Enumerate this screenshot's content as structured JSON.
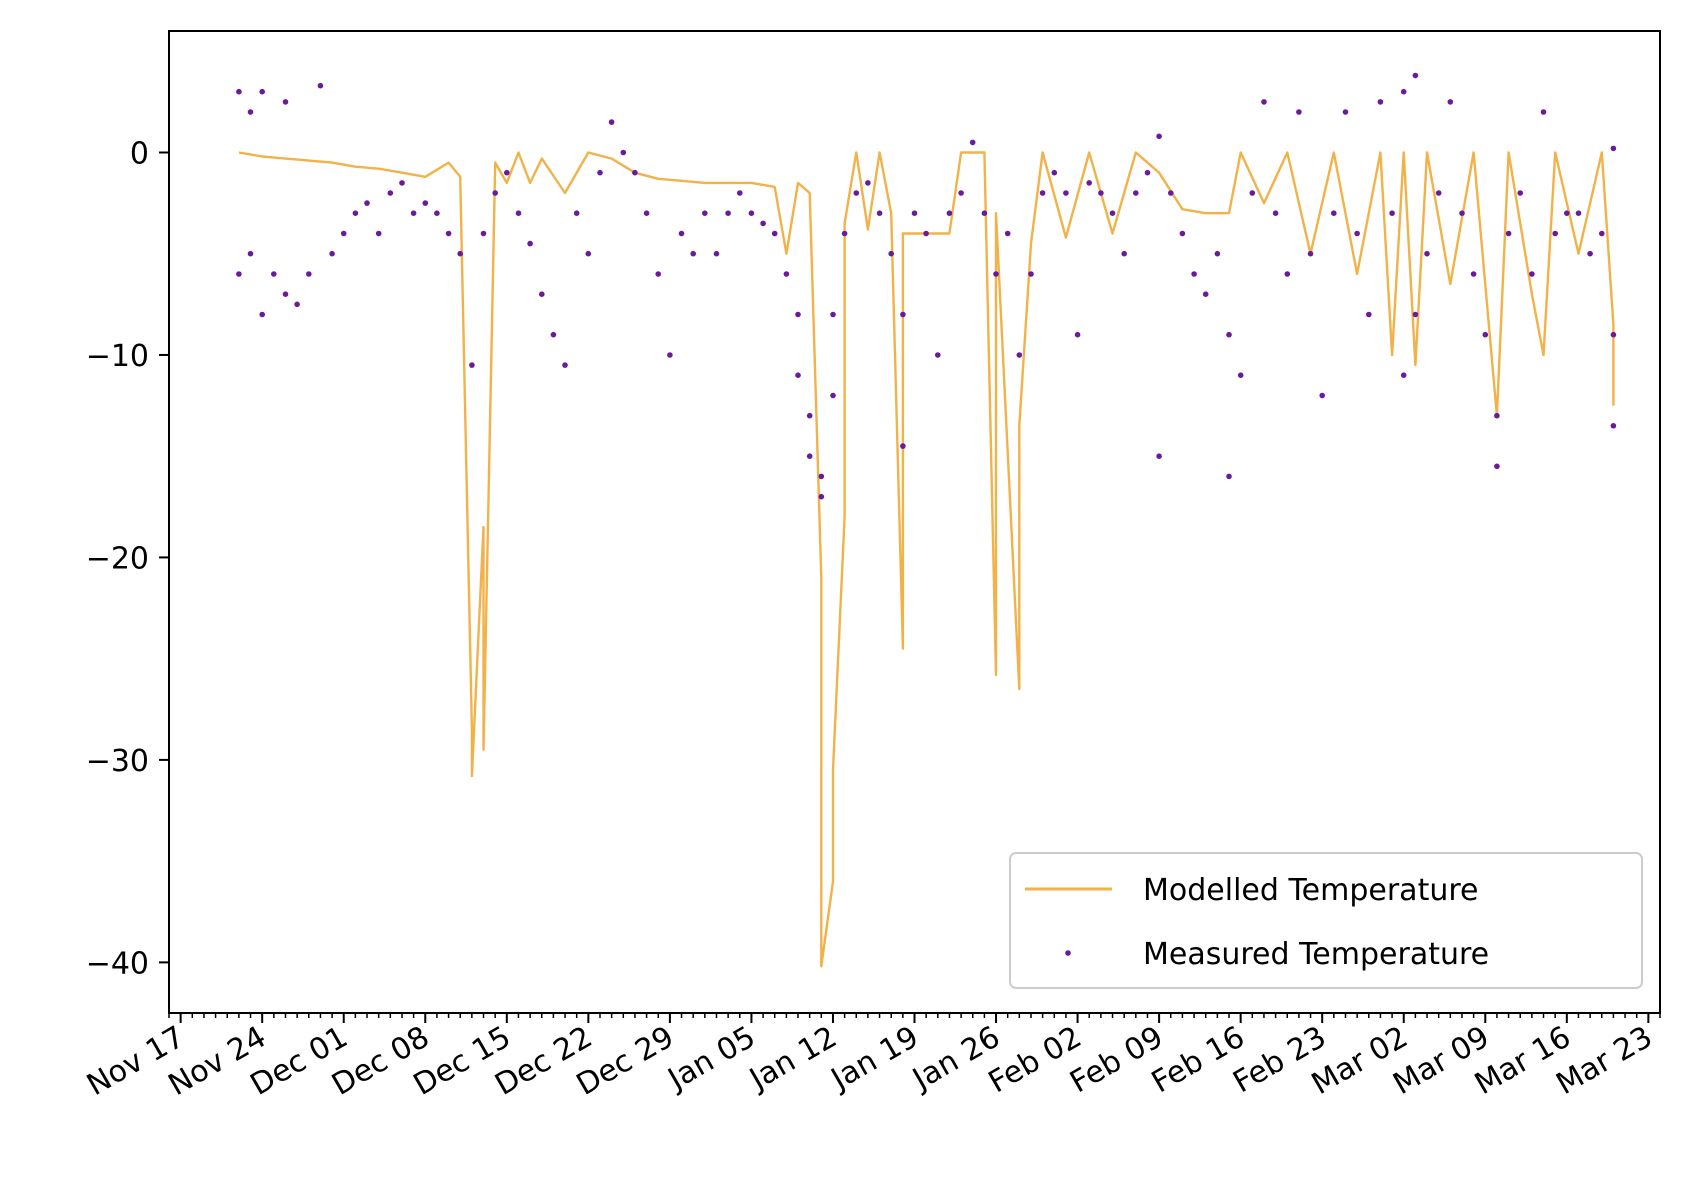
{
  "chart_data": {
    "type": "line",
    "title": "",
    "xlabel": "",
    "ylabel": "",
    "x_axis": {
      "kind": "date",
      "range": [
        "2020-11-16",
        "2021-03-24"
      ]
    },
    "ylim": [
      -42.5,
      6
    ],
    "grid": false,
    "legend_position": "lower-right",
    "x_tick_labels": [
      {
        "date": "2020-11-17",
        "label": "Nov 17"
      },
      {
        "date": "2020-11-24",
        "label": "Nov 24"
      },
      {
        "date": "2020-12-01",
        "label": "Dec 01"
      },
      {
        "date": "2020-12-08",
        "label": "Dec 08"
      },
      {
        "date": "2020-12-15",
        "label": "Dec 15"
      },
      {
        "date": "2020-12-22",
        "label": "Dec 22"
      },
      {
        "date": "2020-12-29",
        "label": "Dec 29"
      },
      {
        "date": "2021-01-05",
        "label": "Jan 05"
      },
      {
        "date": "2021-01-12",
        "label": "Jan 12"
      },
      {
        "date": "2021-01-19",
        "label": "Jan 19"
      },
      {
        "date": "2021-01-26",
        "label": "Jan 26"
      },
      {
        "date": "2021-02-02",
        "label": "Feb 02"
      },
      {
        "date": "2021-02-09",
        "label": "Feb 09"
      },
      {
        "date": "2021-02-16",
        "label": "Feb 16"
      },
      {
        "date": "2021-02-23",
        "label": "Feb 23"
      },
      {
        "date": "2021-03-02",
        "label": "Mar 02"
      },
      {
        "date": "2021-03-09",
        "label": "Mar 09"
      },
      {
        "date": "2021-03-16",
        "label": "Mar 16"
      },
      {
        "date": "2021-03-23",
        "label": "Mar 23"
      }
    ],
    "y_ticks": [
      0,
      -10,
      -20,
      -30,
      -40
    ],
    "y_tick_labels": [
      "0",
      "−10",
      "−20",
      "−30",
      "−40"
    ],
    "series": [
      {
        "name": "Modelled Temperature",
        "kind": "line",
        "color": "#f2b24a",
        "points": [
          {
            "x": "2020-11-22",
            "y": 0
          },
          {
            "x": "2020-11-24",
            "y": -0.2
          },
          {
            "x": "2020-11-26",
            "y": -0.3
          },
          {
            "x": "2020-11-28",
            "y": -0.4
          },
          {
            "x": "2020-11-30",
            "y": -0.5
          },
          {
            "x": "2020-12-02",
            "y": -0.7
          },
          {
            "x": "2020-12-04",
            "y": -0.8
          },
          {
            "x": "2020-12-06",
            "y": -1.0
          },
          {
            "x": "2020-12-08",
            "y": -1.2
          },
          {
            "x": "2020-12-10",
            "y": -0.5
          },
          {
            "x": "2020-12-11",
            "y": -1.2
          },
          {
            "x": "2020-12-12",
            "y": -28.5
          },
          {
            "x": "2020-12-12",
            "y": -30.8
          },
          {
            "x": "2020-12-13",
            "y": -18.5
          },
          {
            "x": "2020-12-13",
            "y": -29.5
          },
          {
            "x": "2020-12-14",
            "y": -0.5
          },
          {
            "x": "2020-12-15",
            "y": -1.5
          },
          {
            "x": "2020-12-16",
            "y": 0
          },
          {
            "x": "2020-12-17",
            "y": -1.5
          },
          {
            "x": "2020-12-18",
            "y": -0.3
          },
          {
            "x": "2020-12-20",
            "y": -2.0
          },
          {
            "x": "2020-12-22",
            "y": 0
          },
          {
            "x": "2020-12-24",
            "y": -0.3
          },
          {
            "x": "2020-12-26",
            "y": -1.0
          },
          {
            "x": "2020-12-28",
            "y": -1.3
          },
          {
            "x": "2020-12-30",
            "y": -1.4
          },
          {
            "x": "2021-01-01",
            "y": -1.5
          },
          {
            "x": "2021-01-03",
            "y": -1.5
          },
          {
            "x": "2021-01-05",
            "y": -1.5
          },
          {
            "x": "2021-01-07",
            "y": -1.7
          },
          {
            "x": "2021-01-08",
            "y": -5.0
          },
          {
            "x": "2021-01-09",
            "y": -1.5
          },
          {
            "x": "2021-01-10",
            "y": -2.0
          },
          {
            "x": "2021-01-11",
            "y": -21.0
          },
          {
            "x": "2021-01-11",
            "y": -35.5
          },
          {
            "x": "2021-01-11",
            "y": -40.2
          },
          {
            "x": "2021-01-12",
            "y": -36.0
          },
          {
            "x": "2021-01-12",
            "y": -30.5
          },
          {
            "x": "2021-01-13",
            "y": -18.0
          },
          {
            "x": "2021-01-13",
            "y": -3.5
          },
          {
            "x": "2021-01-14",
            "y": 0
          },
          {
            "x": "2021-01-15",
            "y": -3.8
          },
          {
            "x": "2021-01-16",
            "y": 0
          },
          {
            "x": "2021-01-17",
            "y": -3.0
          },
          {
            "x": "2021-01-18",
            "y": -24.5
          },
          {
            "x": "2021-01-18",
            "y": -4.0
          },
          {
            "x": "2021-01-20",
            "y": -4.0
          },
          {
            "x": "2021-01-22",
            "y": -4.0
          },
          {
            "x": "2021-01-23",
            "y": 0
          },
          {
            "x": "2021-01-25",
            "y": 0
          },
          {
            "x": "2021-01-26",
            "y": -25.8
          },
          {
            "x": "2021-01-26",
            "y": -3.0
          },
          {
            "x": "2021-01-28",
            "y": -26.5
          },
          {
            "x": "2021-01-28",
            "y": -13.5
          },
          {
            "x": "2021-01-29",
            "y": -4.5
          },
          {
            "x": "2021-01-30",
            "y": 0
          },
          {
            "x": "2021-02-01",
            "y": -4.2
          },
          {
            "x": "2021-02-03",
            "y": 0
          },
          {
            "x": "2021-02-05",
            "y": -4.0
          },
          {
            "x": "2021-02-07",
            "y": 0
          },
          {
            "x": "2021-02-09",
            "y": -1.0
          },
          {
            "x": "2021-02-11",
            "y": -2.8
          },
          {
            "x": "2021-02-13",
            "y": -3.0
          },
          {
            "x": "2021-02-15",
            "y": -3.0
          },
          {
            "x": "2021-02-16",
            "y": 0
          },
          {
            "x": "2021-02-18",
            "y": -2.5
          },
          {
            "x": "2021-02-20",
            "y": 0
          },
          {
            "x": "2021-02-22",
            "y": -5.0
          },
          {
            "x": "2021-02-24",
            "y": 0
          },
          {
            "x": "2021-02-26",
            "y": -6.0
          },
          {
            "x": "2021-02-28",
            "y": 0
          },
          {
            "x": "2021-03-01",
            "y": -10.0
          },
          {
            "x": "2021-03-02",
            "y": 0
          },
          {
            "x": "2021-03-03",
            "y": -10.5
          },
          {
            "x": "2021-03-04",
            "y": 0
          },
          {
            "x": "2021-03-06",
            "y": -6.5
          },
          {
            "x": "2021-03-08",
            "y": 0
          },
          {
            "x": "2021-03-10",
            "y": -13.0
          },
          {
            "x": "2021-03-11",
            "y": 0
          },
          {
            "x": "2021-03-13",
            "y": -7.0
          },
          {
            "x": "2021-03-14",
            "y": -10.0
          },
          {
            "x": "2021-03-15",
            "y": 0
          },
          {
            "x": "2021-03-17",
            "y": -5.0
          },
          {
            "x": "2021-03-19",
            "y": 0
          },
          {
            "x": "2021-03-20",
            "y": -8.5
          },
          {
            "x": "2021-03-20",
            "y": -12.5
          }
        ]
      },
      {
        "name": "Measured Temperature",
        "kind": "scatter",
        "color": "#6a1b9a",
        "points": [
          {
            "x": "2020-11-22",
            "y": -6
          },
          {
            "x": "2020-11-22",
            "y": 3
          },
          {
            "x": "2020-11-23",
            "y": -5
          },
          {
            "x": "2020-11-23",
            "y": 2
          },
          {
            "x": "2020-11-24",
            "y": -8
          },
          {
            "x": "2020-11-24",
            "y": 3
          },
          {
            "x": "2020-11-25",
            "y": -6
          },
          {
            "x": "2020-11-26",
            "y": -7
          },
          {
            "x": "2020-11-26",
            "y": 2.5
          },
          {
            "x": "2020-11-27",
            "y": -7.5
          },
          {
            "x": "2020-11-28",
            "y": -6
          },
          {
            "x": "2020-11-29",
            "y": 3.3
          },
          {
            "x": "2020-11-30",
            "y": -5
          },
          {
            "x": "2020-12-01",
            "y": -4
          },
          {
            "x": "2020-12-02",
            "y": -3
          },
          {
            "x": "2020-12-03",
            "y": -2.5
          },
          {
            "x": "2020-12-04",
            "y": -4
          },
          {
            "x": "2020-12-05",
            "y": -2
          },
          {
            "x": "2020-12-06",
            "y": -1.5
          },
          {
            "x": "2020-12-07",
            "y": -3
          },
          {
            "x": "2020-12-08",
            "y": -2.5
          },
          {
            "x": "2020-12-09",
            "y": -3
          },
          {
            "x": "2020-12-10",
            "y": -4
          },
          {
            "x": "2020-12-11",
            "y": -5
          },
          {
            "x": "2020-12-12",
            "y": -10.5
          },
          {
            "x": "2020-12-13",
            "y": -4
          },
          {
            "x": "2020-12-14",
            "y": -2
          },
          {
            "x": "2020-12-15",
            "y": -1
          },
          {
            "x": "2020-12-16",
            "y": -3
          },
          {
            "x": "2020-12-17",
            "y": -4.5
          },
          {
            "x": "2020-12-18",
            "y": -7
          },
          {
            "x": "2020-12-19",
            "y": -9
          },
          {
            "x": "2020-12-20",
            "y": -10.5
          },
          {
            "x": "2020-12-21",
            "y": -3
          },
          {
            "x": "2020-12-22",
            "y": -5
          },
          {
            "x": "2020-12-23",
            "y": -1
          },
          {
            "x": "2020-12-24",
            "y": 1.5
          },
          {
            "x": "2020-12-25",
            "y": 0
          },
          {
            "x": "2020-12-26",
            "y": -1
          },
          {
            "x": "2020-12-27",
            "y": -3
          },
          {
            "x": "2020-12-28",
            "y": -6
          },
          {
            "x": "2020-12-29",
            "y": -10
          },
          {
            "x": "2020-12-30",
            "y": -4
          },
          {
            "x": "2020-12-31",
            "y": -5
          },
          {
            "x": "2021-01-01",
            "y": -3
          },
          {
            "x": "2021-01-02",
            "y": -5
          },
          {
            "x": "2021-01-03",
            "y": -3
          },
          {
            "x": "2021-01-04",
            "y": -2
          },
          {
            "x": "2021-01-05",
            "y": -3
          },
          {
            "x": "2021-01-06",
            "y": -3.5
          },
          {
            "x": "2021-01-07",
            "y": -4
          },
          {
            "x": "2021-01-08",
            "y": -6
          },
          {
            "x": "2021-01-09",
            "y": -8
          },
          {
            "x": "2021-01-09",
            "y": -11
          },
          {
            "x": "2021-01-10",
            "y": -13
          },
          {
            "x": "2021-01-10",
            "y": -15
          },
          {
            "x": "2021-01-11",
            "y": -16
          },
          {
            "x": "2021-01-11",
            "y": -17
          },
          {
            "x": "2021-01-12",
            "y": -12
          },
          {
            "x": "2021-01-12",
            "y": -8
          },
          {
            "x": "2021-01-13",
            "y": -4
          },
          {
            "x": "2021-01-14",
            "y": -2
          },
          {
            "x": "2021-01-15",
            "y": -1.5
          },
          {
            "x": "2021-01-16",
            "y": -3
          },
          {
            "x": "2021-01-17",
            "y": -5
          },
          {
            "x": "2021-01-18",
            "y": -14.5
          },
          {
            "x": "2021-01-18",
            "y": -8
          },
          {
            "x": "2021-01-19",
            "y": -3
          },
          {
            "x": "2021-01-20",
            "y": -4
          },
          {
            "x": "2021-01-21",
            "y": -10
          },
          {
            "x": "2021-01-22",
            "y": -3
          },
          {
            "x": "2021-01-23",
            "y": -2
          },
          {
            "x": "2021-01-24",
            "y": 0.5
          },
          {
            "x": "2021-01-25",
            "y": -3
          },
          {
            "x": "2021-01-26",
            "y": -6
          },
          {
            "x": "2021-01-27",
            "y": -4
          },
          {
            "x": "2021-01-28",
            "y": -10
          },
          {
            "x": "2021-01-29",
            "y": -6
          },
          {
            "x": "2021-01-30",
            "y": -2
          },
          {
            "x": "2021-01-31",
            "y": -1
          },
          {
            "x": "2021-02-01",
            "y": -2
          },
          {
            "x": "2021-02-02",
            "y": -9
          },
          {
            "x": "2021-02-03",
            "y": -1.5
          },
          {
            "x": "2021-02-04",
            "y": -2
          },
          {
            "x": "2021-02-05",
            "y": -3
          },
          {
            "x": "2021-02-06",
            "y": -5
          },
          {
            "x": "2021-02-07",
            "y": -2
          },
          {
            "x": "2021-02-08",
            "y": -1
          },
          {
            "x": "2021-02-09",
            "y": 0.8
          },
          {
            "x": "2021-02-09",
            "y": -15
          },
          {
            "x": "2021-02-10",
            "y": -2
          },
          {
            "x": "2021-02-11",
            "y": -4
          },
          {
            "x": "2021-02-12",
            "y": -6
          },
          {
            "x": "2021-02-13",
            "y": -7
          },
          {
            "x": "2021-02-14",
            "y": -5
          },
          {
            "x": "2021-02-15",
            "y": -9
          },
          {
            "x": "2021-02-15",
            "y": -16
          },
          {
            "x": "2021-02-16",
            "y": -11
          },
          {
            "x": "2021-02-17",
            "y": -2
          },
          {
            "x": "2021-02-18",
            "y": 2.5
          },
          {
            "x": "2021-02-19",
            "y": -3
          },
          {
            "x": "2021-02-20",
            "y": -6
          },
          {
            "x": "2021-02-21",
            "y": 2
          },
          {
            "x": "2021-02-22",
            "y": -5
          },
          {
            "x": "2021-02-23",
            "y": -12
          },
          {
            "x": "2021-02-24",
            "y": -3
          },
          {
            "x": "2021-02-25",
            "y": 2
          },
          {
            "x": "2021-02-26",
            "y": -4
          },
          {
            "x": "2021-02-27",
            "y": -8
          },
          {
            "x": "2021-02-28",
            "y": 2.5
          },
          {
            "x": "2021-03-01",
            "y": -3
          },
          {
            "x": "2021-03-02",
            "y": -11
          },
          {
            "x": "2021-03-02",
            "y": 3
          },
          {
            "x": "2021-03-03",
            "y": -8
          },
          {
            "x": "2021-03-03",
            "y": 3.8
          },
          {
            "x": "2021-03-04",
            "y": -5
          },
          {
            "x": "2021-03-05",
            "y": -2
          },
          {
            "x": "2021-03-06",
            "y": 2.5
          },
          {
            "x": "2021-03-07",
            "y": -3
          },
          {
            "x": "2021-03-08",
            "y": -6
          },
          {
            "x": "2021-03-09",
            "y": -9
          },
          {
            "x": "2021-03-10",
            "y": -13
          },
          {
            "x": "2021-03-10",
            "y": -15.5
          },
          {
            "x": "2021-03-11",
            "y": -4
          },
          {
            "x": "2021-03-12",
            "y": -2
          },
          {
            "x": "2021-03-13",
            "y": -6
          },
          {
            "x": "2021-03-14",
            "y": 2
          },
          {
            "x": "2021-03-15",
            "y": -4
          },
          {
            "x": "2021-03-16",
            "y": -3
          },
          {
            "x": "2021-03-17",
            "y": -3
          },
          {
            "x": "2021-03-18",
            "y": -5
          },
          {
            "x": "2021-03-19",
            "y": -4
          },
          {
            "x": "2021-03-20",
            "y": 0.2
          },
          {
            "x": "2021-03-20",
            "y": -9
          },
          {
            "x": "2021-03-20",
            "y": -13.5
          }
        ]
      }
    ]
  },
  "legend": {
    "modelled_label": "Modelled Temperature",
    "measured_label": "Measured Temperature"
  }
}
